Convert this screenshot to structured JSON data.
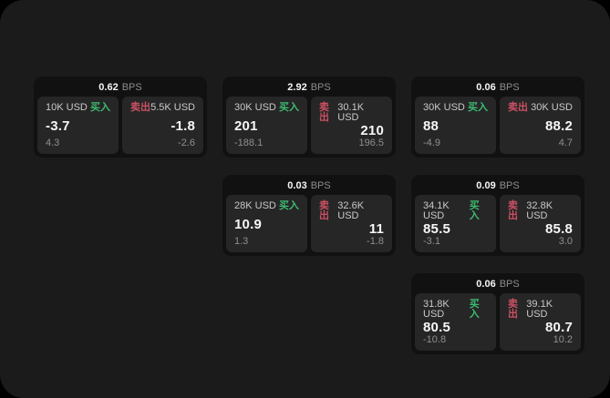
{
  "colors": {
    "buy_green": "#3dbb6f",
    "sell_red": "#cb5162",
    "window_bg": "#1b1b1c",
    "card_bg": "#111112",
    "panel_bg": "#262627"
  },
  "labels": {
    "bps": "BPS",
    "buy": "买入",
    "sell": "卖出"
  },
  "cards": [
    {
      "row": 1,
      "col": 1,
      "bps_value": "0.62",
      "bps_label": "BPS",
      "buy": {
        "amount": "10K USD",
        "action": "买入",
        "price": "-3.7",
        "delta": "4.3"
      },
      "sell": {
        "amount": "5.5K USD",
        "action": "卖出",
        "price": "-1.8",
        "delta": "-2.6"
      }
    },
    {
      "row": 1,
      "col": 2,
      "bps_value": "2.92",
      "bps_label": "BPS",
      "buy": {
        "amount": "30K USD",
        "action": "买入",
        "price": "201",
        "delta": "-188.1"
      },
      "sell": {
        "amount": "30.1K USD",
        "action": "卖出",
        "price": "210",
        "delta": "196.5"
      }
    },
    {
      "row": 1,
      "col": 3,
      "bps_value": "0.06",
      "bps_label": "BPS",
      "buy": {
        "amount": "30K USD",
        "action": "买入",
        "price": "88",
        "delta": "-4.9"
      },
      "sell": {
        "amount": "30K USD",
        "action": "卖出",
        "price": "88.2",
        "delta": "4.7"
      }
    },
    {
      "row": 2,
      "col": 2,
      "bps_value": "0.03",
      "bps_label": "BPS",
      "buy": {
        "amount": "28K USD",
        "action": "买入",
        "price": "10.9",
        "delta": "1.3"
      },
      "sell": {
        "amount": "32.6K USD",
        "action": "卖出",
        "price": "11",
        "delta": "-1.8"
      }
    },
    {
      "row": 2,
      "col": 3,
      "bps_value": "0.09",
      "bps_label": "BPS",
      "buy": {
        "amount": "34.1K USD",
        "action": "买入",
        "price": "85.5",
        "delta": "-3.1"
      },
      "sell": {
        "amount": "32.8K USD",
        "action": "卖出",
        "price": "85.8",
        "delta": "3.0"
      }
    },
    {
      "row": 3,
      "col": 3,
      "bps_value": "0.06",
      "bps_label": "BPS",
      "buy": {
        "amount": "31.8K USD",
        "action": "买入",
        "price": "80.5",
        "delta": "-10.8"
      },
      "sell": {
        "amount": "39.1K USD",
        "action": "卖出",
        "price": "80.7",
        "delta": "10.2"
      }
    }
  ]
}
